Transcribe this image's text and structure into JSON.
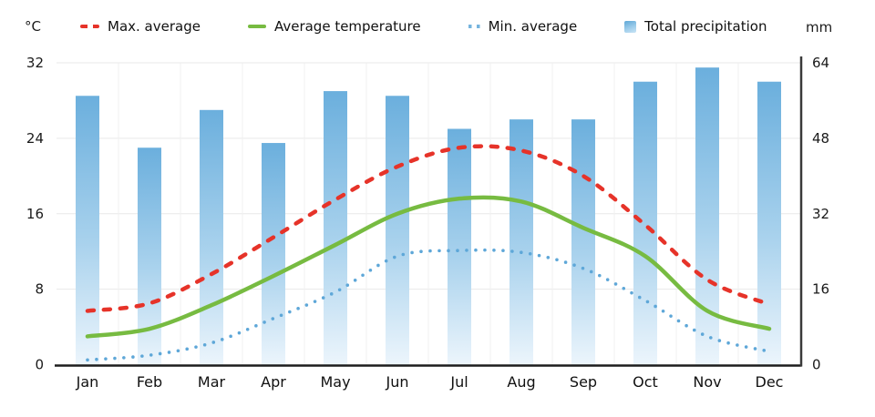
{
  "chart_data": {
    "type": "composite",
    "title": "",
    "categories": [
      "Jan",
      "Feb",
      "Mar",
      "Apr",
      "May",
      "Jun",
      "Jul",
      "Aug",
      "Sep",
      "Oct",
      "Nov",
      "Dec"
    ],
    "series": [
      {
        "name": "Max. average",
        "type": "line",
        "style": "dashed",
        "color": "#e63329",
        "axis": "temperature_c",
        "values": [
          5.7,
          6.5,
          9.6,
          13.5,
          17.5,
          21.0,
          23.0,
          22.7,
          20.0,
          14.8,
          9.0,
          6.4
        ]
      },
      {
        "name": "Average temperature",
        "type": "line",
        "style": "solid",
        "color": "#77bb41",
        "axis": "temperature_c",
        "values": [
          3.0,
          3.8,
          6.3,
          9.4,
          12.7,
          16.0,
          17.6,
          17.3,
          14.5,
          11.5,
          5.7,
          3.8
        ]
      },
      {
        "name": "Min. average",
        "type": "line",
        "style": "dotted",
        "color": "#5ea7d8",
        "axis": "temperature_c",
        "values": [
          0.5,
          1.0,
          2.3,
          4.9,
          7.7,
          11.5,
          12.1,
          11.9,
          10.2,
          6.8,
          3.0,
          1.4
        ]
      },
      {
        "name": "Total precipitation",
        "type": "bar",
        "color_top": "#6bafdd",
        "color_bottom": "#ecf5fc",
        "axis": "precipitation_mm",
        "values": [
          57,
          46,
          54,
          47,
          58,
          57,
          50,
          52,
          52,
          60,
          63,
          60
        ]
      }
    ],
    "axes": {
      "left": {
        "label": "°C",
        "ticks": [
          0,
          8,
          16,
          24,
          32
        ],
        "range": [
          0,
          32
        ]
      },
      "right": {
        "label": "mm",
        "ticks": [
          0,
          16,
          32,
          48,
          64
        ],
        "range": [
          0,
          64
        ]
      }
    },
    "grid": true,
    "legend_position": "top",
    "colors": {
      "gridline": "#e9e9e9",
      "vertical_gridline": "#f0f0f0",
      "axis_line": "#1d1d1d",
      "right_spine": "#3a3a3a",
      "tick_text": "#1a1a1a"
    }
  }
}
